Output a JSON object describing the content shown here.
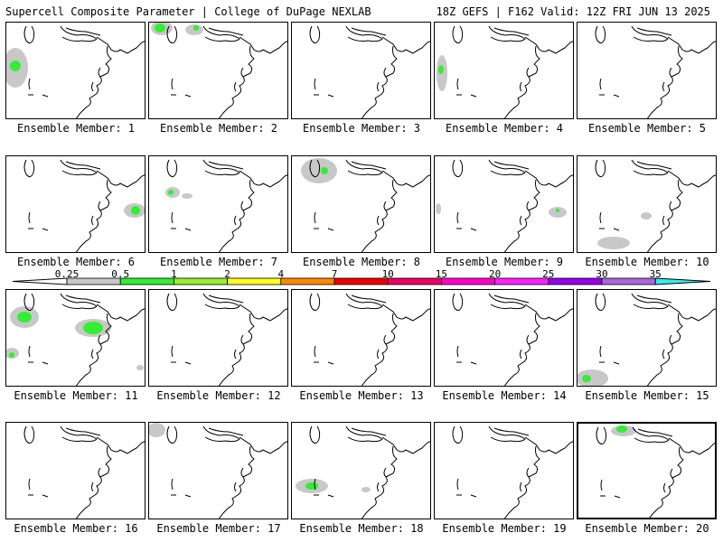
{
  "header": {
    "title": "Supercell Composite Parameter | College of DuPage NEXLAB",
    "valid": "18Z GEFS | F162 Valid: 12Z FRI JUN 13 2025"
  },
  "legend": {
    "levels": [
      "0.25",
      "0.5",
      "1",
      "2",
      "4",
      "7",
      "10",
      "15",
      "20",
      "25",
      "30",
      "35"
    ],
    "colors": [
      "#ffffff",
      "#c8c8c8",
      "#33ee33",
      "#99ee33",
      "#ffff22",
      "#ff8800",
      "#ee0000",
      "#ee0066",
      "#ff00cc",
      "#ff22ff",
      "#9900ee",
      "#aa66dd",
      "#33eeee"
    ]
  },
  "members": [
    {
      "label": "Ensemble Member: 1"
    },
    {
      "label": "Ensemble Member: 2"
    },
    {
      "label": "Ensemble Member: 3"
    },
    {
      "label": "Ensemble Member: 4"
    },
    {
      "label": "Ensemble Member: 5"
    },
    {
      "label": "Ensemble Member: 6"
    },
    {
      "label": "Ensemble Member: 7"
    },
    {
      "label": "Ensemble Member: 8"
    },
    {
      "label": "Ensemble Member: 9"
    },
    {
      "label": "Ensemble Member: 10"
    },
    {
      "label": "Ensemble Member: 11"
    },
    {
      "label": "Ensemble Member: 12"
    },
    {
      "label": "Ensemble Member: 13"
    },
    {
      "label": "Ensemble Member: 14"
    },
    {
      "label": "Ensemble Member: 15"
    },
    {
      "label": "Ensemble Member: 16"
    },
    {
      "label": "Ensemble Member: 17"
    },
    {
      "label": "Ensemble Member: 18"
    },
    {
      "label": "Ensemble Member: 19"
    },
    {
      "label": "Ensemble Member: 20"
    }
  ]
}
